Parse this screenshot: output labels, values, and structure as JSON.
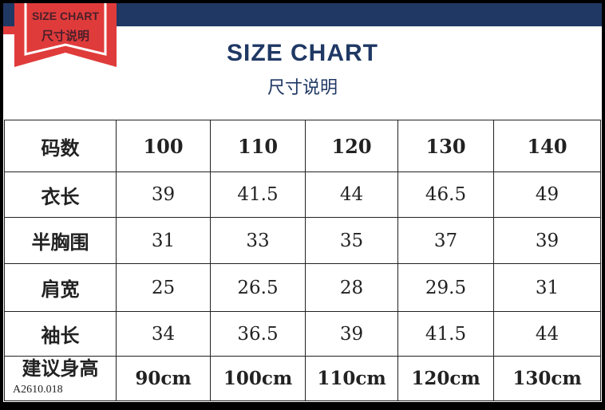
{
  "banner": {
    "line1": "SIZE CHART",
    "line2": "尺寸说明"
  },
  "header": {
    "title": "SIZE CHART",
    "subtitle": "尺寸说明"
  },
  "colors": {
    "navy": "#1f3864",
    "red": "#e03b3b"
  },
  "table": {
    "header": [
      "码数",
      "100",
      "110",
      "120",
      "130",
      "140"
    ],
    "rows": [
      [
        "衣长",
        "39",
        "41.5",
        "44",
        "46.5",
        "49"
      ],
      [
        "半胸围",
        "31",
        "33",
        "35",
        "37",
        "39"
      ],
      [
        "肩宽",
        "25",
        "26.5",
        "28",
        "29.5",
        "31"
      ],
      [
        "袖长",
        "34",
        "36.5",
        "39",
        "41.5",
        "44"
      ],
      [
        "建议身高",
        "90cm",
        "100cm",
        "110cm",
        "120cm",
        "130cm"
      ]
    ]
  },
  "product_code": "A2610.018"
}
